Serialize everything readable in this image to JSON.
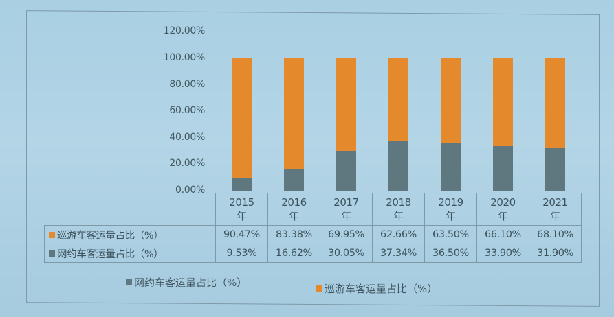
{
  "chart_data": {
    "type": "bar",
    "stacked": true,
    "title": "",
    "xlabel": "",
    "ylabel": "",
    "categories": [
      "2015年",
      "2016年",
      "2017年",
      "2018年",
      "2019年",
      "2020年",
      "2021年"
    ],
    "series": [
      {
        "name": "网约车客运量占比（%）",
        "color": "#5f7880",
        "values": [
          9.53,
          16.62,
          30.05,
          37.34,
          36.5,
          33.9,
          31.9
        ]
      },
      {
        "name": "巡游车客运量占比（%）",
        "color": "#e48a2c",
        "values": [
          90.47,
          83.38,
          69.95,
          62.66,
          63.5,
          66.1,
          68.1
        ]
      }
    ],
    "ylim": [
      0,
      120
    ],
    "yticks": [
      "0.00%",
      "20.00%",
      "40.00%",
      "60.00%",
      "80.00%",
      "100.00%",
      "120.00%"
    ],
    "grid": false,
    "legend_position": "bottom",
    "data_table": true
  },
  "table": {
    "years": [
      [
        "2015",
        "年"
      ],
      [
        "2016",
        "年"
      ],
      [
        "2017",
        "年"
      ],
      [
        "2018",
        "年"
      ],
      [
        "2019",
        "年"
      ],
      [
        "2020",
        "年"
      ],
      [
        "2021",
        "年"
      ]
    ],
    "rows": [
      {
        "label": "巡游车客运量占比（%）",
        "color": "#e48a2c",
        "cells": [
          "90.47%",
          "83.38%",
          "69.95%",
          "62.66%",
          "63.50%",
          "66.10%",
          "68.10%"
        ]
      },
      {
        "label": "网约车客运量占比（%）",
        "color": "#5f7880",
        "cells": [
          "9.53%",
          "16.62%",
          "30.05%",
          "37.34%",
          "36.50%",
          "33.90%",
          "31.90%"
        ]
      }
    ]
  },
  "legend": [
    {
      "label": "网约车客运量占比（%）",
      "color": "#5f7880"
    },
    {
      "label": "巡游车客运量占比（%）",
      "color": "#e48a2c"
    }
  ]
}
